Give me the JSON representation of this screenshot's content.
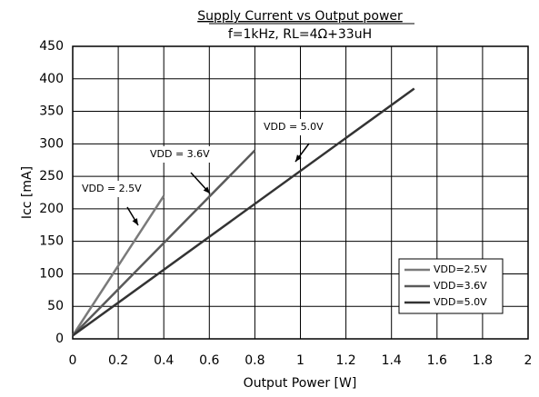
{
  "chart_data": {
    "type": "line",
    "title": "Supply Current vs Output power",
    "subtitle": "f=1kHz, RL=4Ω+33uH",
    "x_label": "Output Power [W]",
    "y_label": "Icc [mA]",
    "xlim": [
      0,
      2
    ],
    "xticks": [
      0,
      0.2,
      0.4,
      0.6,
      0.8,
      1,
      1.2,
      1.4,
      1.6,
      1.8,
      2
    ],
    "ylim": [
      0,
      450
    ],
    "yticks": [
      0,
      50,
      100,
      150,
      200,
      250,
      300,
      350,
      400,
      450
    ],
    "grid": true,
    "legend": "lower right",
    "series": [
      {
        "name": "VDD=2.5V",
        "color": "#7a7a7a",
        "x": [
          0,
          0.4
        ],
        "values": [
          5,
          220
        ]
      },
      {
        "name": "VDD=3.6V",
        "color": "#5a5a5a",
        "x": [
          0,
          0.8
        ],
        "values": [
          5,
          290
        ]
      },
      {
        "name": "VDD=5.0V",
        "color": "#333333",
        "x": [
          0,
          1.5
        ],
        "values": [
          5,
          385
        ]
      }
    ],
    "annotations": [
      "VDD = 2.5V",
      "VDD = 3.6V",
      "VDD = 5.0V"
    ]
  }
}
